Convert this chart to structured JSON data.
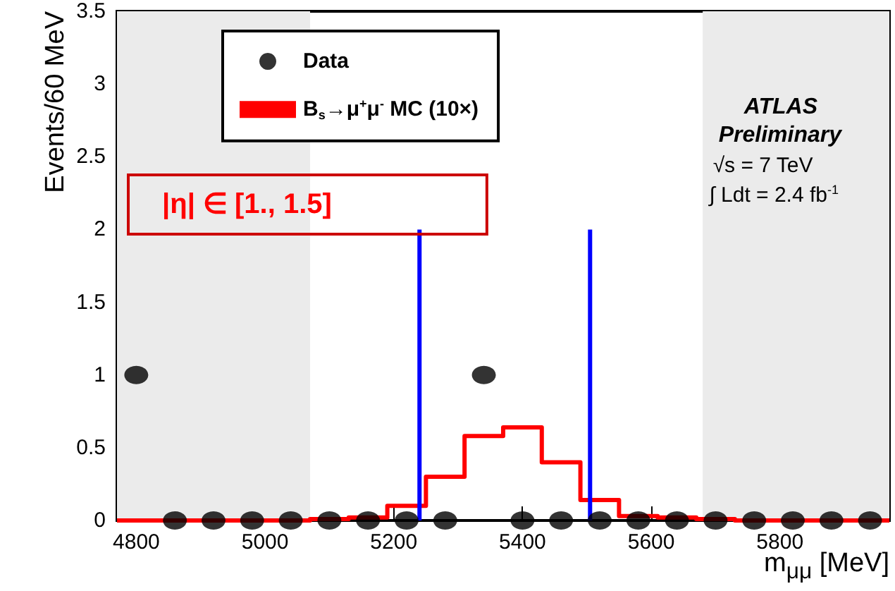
{
  "chart_data": {
    "type": "scatter",
    "xlabel": "m$_{μμ}$ [MeV]",
    "ylabel": "Events/60 MeV",
    "xlim": [
      4770,
      5970
    ],
    "xticks": [
      4800,
      5000,
      5200,
      5400,
      5600,
      5800
    ],
    "ylim": [
      0,
      3.5
    ],
    "yticks": [
      0,
      0.5,
      1,
      1.5,
      2,
      2.5,
      3,
      3.5
    ],
    "series": [
      {
        "name": "Data",
        "color": "#000000",
        "marker": "circle",
        "x": [
          4800,
          4860,
          4920,
          4980,
          5040,
          5100,
          5160,
          5220,
          5280,
          5340,
          5400,
          5460,
          5520,
          5580,
          5640,
          5700,
          5760,
          5820,
          5880,
          5940
        ],
        "values": [
          1,
          0,
          0,
          0,
          0,
          0,
          0,
          0,
          0,
          1,
          0,
          0,
          0,
          0,
          0,
          0,
          0,
          0,
          0,
          0
        ]
      },
      {
        "name": "B$_{s}$→μ$^{+}$μ$^{-}$ MC (10×)",
        "type": "histogram",
        "color": "#ff0000",
        "bins": [
          4770,
          4830,
          4890,
          4950,
          5010,
          5070,
          5130,
          5190,
          5250,
          5310,
          5370,
          5430,
          5490,
          5550,
          5610,
          5670,
          5730,
          5790,
          5850,
          5910,
          5970
        ],
        "values": [
          0,
          0,
          0,
          0,
          0,
          0.01,
          0.02,
          0.1,
          0.3,
          0.58,
          0.64,
          0.4,
          0.14,
          0.03,
          0.02,
          0.01,
          0,
          0,
          0,
          0
        ]
      },
      {
        "type": "line",
        "color": "#0000ff",
        "x": [
          5240,
          5240
        ],
        "values": [
          0,
          2
        ]
      },
      {
        "type": "line",
        "color": "#0000ff",
        "x": [
          5505,
          5505
        ],
        "values": [
          0,
          2
        ]
      }
    ],
    "bands": [
      {
        "axis": "x",
        "from": 4770,
        "to": 5070,
        "color": "#ebebeb"
      },
      {
        "axis": "x",
        "from": 5680,
        "to": 5970,
        "color": "#ebebeb"
      }
    ],
    "legend": "top left",
    "annotations": [
      "ATLAS",
      "Preliminary",
      "√s = 7 TeV",
      "∫ Ldt = 2.4 fb$^{-1}$",
      "|η| ∈ [1., 1.5]"
    ]
  }
}
